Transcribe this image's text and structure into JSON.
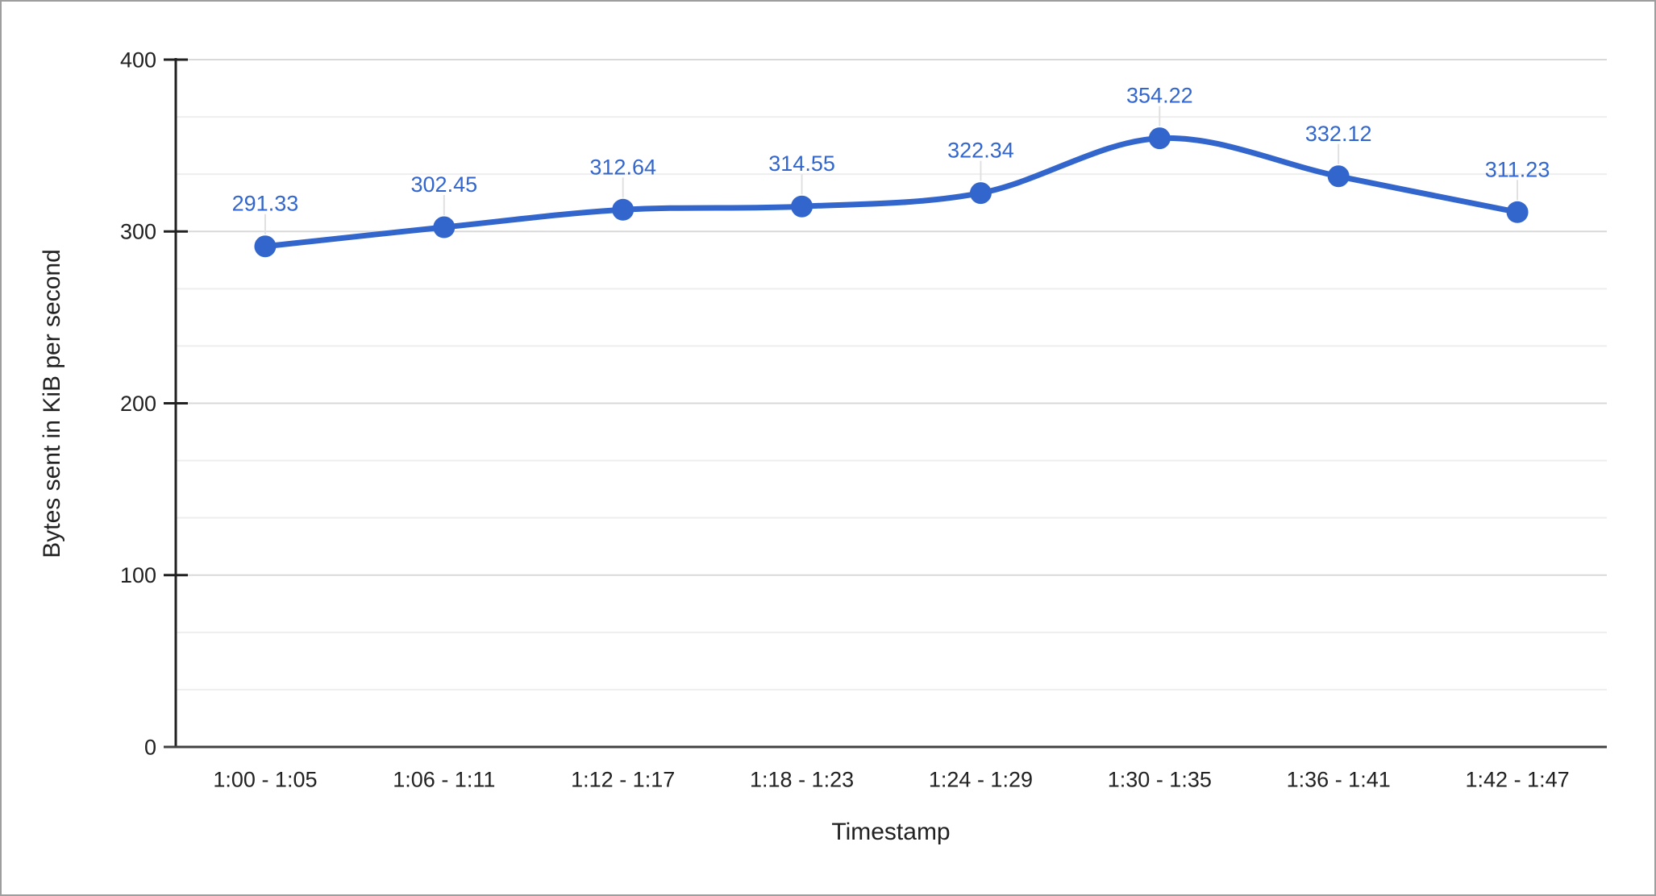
{
  "chart_data": {
    "type": "line",
    "title": "",
    "xlabel": "Timestamp",
    "ylabel": "Bytes sent in KiB per second",
    "categories": [
      "1:00 - 1:05",
      "1:06 - 1:11",
      "1:12 - 1:17",
      "1:18 - 1:23",
      "1:24 - 1:29",
      "1:30 - 1:35",
      "1:36 - 1:41",
      "1:42 - 1:47"
    ],
    "values": [
      291.33,
      302.45,
      312.64,
      314.55,
      322.34,
      354.22,
      332.12,
      311.23
    ],
    "point_labels": [
      "291.33",
      "302.45",
      "312.64",
      "314.55",
      "322.34",
      "354.22",
      "332.12",
      "311.23"
    ],
    "ylim": [
      0,
      400
    ],
    "yticks": [
      0,
      100,
      200,
      300,
      400
    ],
    "ytick_labels": [
      "0",
      "100",
      "200",
      "300",
      "400"
    ],
    "minor_gridlines_per_major": 3,
    "grid": true,
    "legend": "none",
    "line_smoothing": true,
    "colors": {
      "series": "#3366cc",
      "data_label": "#3366cc",
      "major_gridline": "#d9d9d9",
      "minor_gridline": "#eeeeee",
      "leader_line": "#e0e0e0",
      "y_axis_line": "#212121",
      "x_axis_line": "#424242",
      "tick_text": "#212121",
      "frame_border": "#9e9e9e",
      "background": "#ffffff"
    }
  }
}
